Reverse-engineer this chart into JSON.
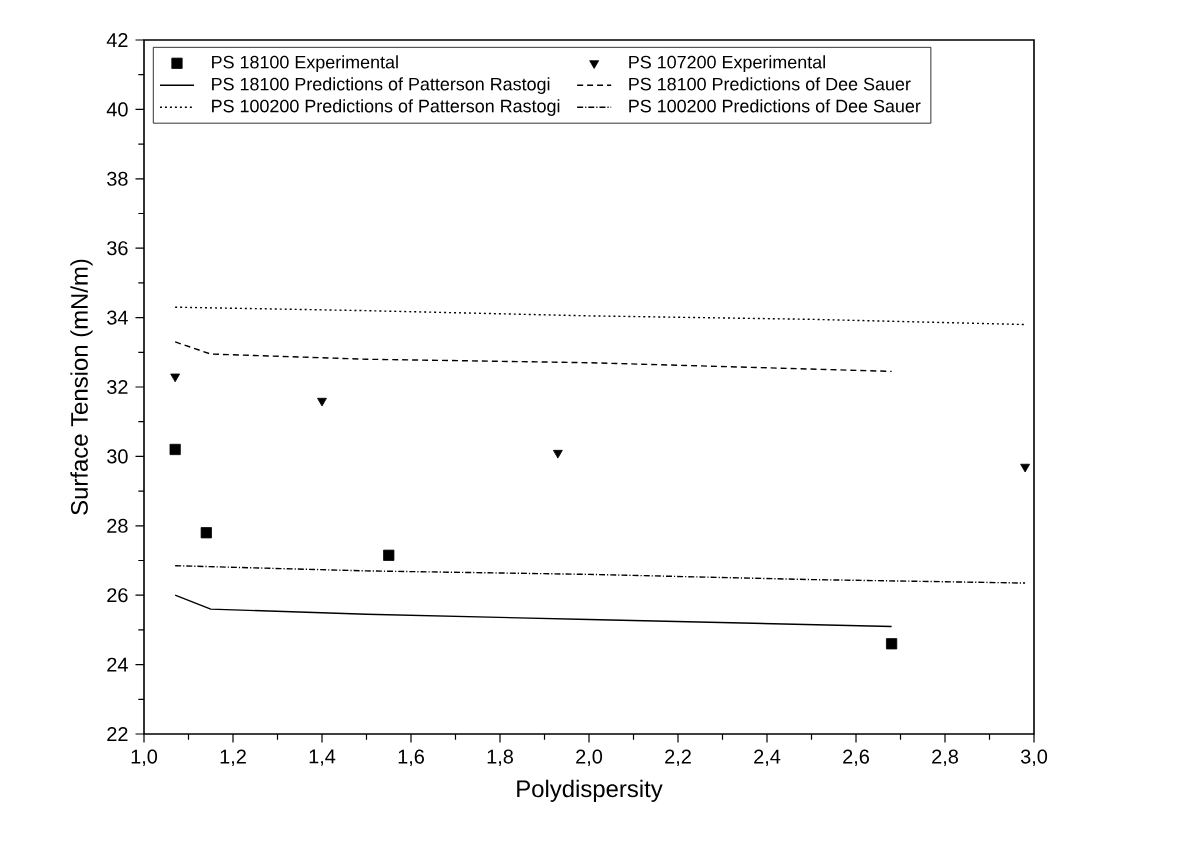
{
  "chart_data": {
    "type": "line",
    "xlabel": "Polydispersity",
    "ylabel": "Surface Tension (mN/m)",
    "xlim": [
      1.0,
      3.0
    ],
    "ylim": [
      22,
      42
    ],
    "xticks": [
      {
        "value": 1.0,
        "label": "1,0"
      },
      {
        "value": 1.2,
        "label": "1,2"
      },
      {
        "value": 1.4,
        "label": "1,4"
      },
      {
        "value": 1.6,
        "label": "1,6"
      },
      {
        "value": 1.8,
        "label": "1,8"
      },
      {
        "value": 2.0,
        "label": "2,0"
      },
      {
        "value": 2.2,
        "label": "2,2"
      },
      {
        "value": 2.4,
        "label": "2,4"
      },
      {
        "value": 2.6,
        "label": "2,6"
      },
      {
        "value": 2.8,
        "label": "2,8"
      },
      {
        "value": 3.0,
        "label": "3,0"
      }
    ],
    "yticks": [
      22,
      24,
      26,
      28,
      30,
      32,
      34,
      36,
      38,
      40,
      42
    ],
    "legend": "top",
    "grid": false,
    "series": [
      {
        "name": "PS 18100   Experimental",
        "type": "scatter",
        "marker": "square",
        "color": "#000000",
        "x": [
          1.07,
          1.14,
          1.55,
          2.68
        ],
        "values": [
          30.2,
          27.8,
          27.15,
          24.6
        ]
      },
      {
        "name": "PS 107200 Experimental",
        "type": "scatter",
        "marker": "triangle",
        "color": "#000000",
        "x": [
          1.07,
          1.4,
          1.93,
          2.98
        ],
        "values": [
          32.3,
          31.6,
          30.1,
          29.7
        ]
      },
      {
        "name": "PS 18100   Predictions of Patterson Rastogi",
        "line_style": "solid",
        "color": "#000000",
        "x": [
          1.07,
          1.15,
          1.5,
          2.0,
          2.68
        ],
        "values": [
          26.0,
          25.6,
          25.45,
          25.3,
          25.1
        ]
      },
      {
        "name": "PS 18100   Predictions of Dee Sauer",
        "line_style": "dashed",
        "color": "#000000",
        "x": [
          1.07,
          1.15,
          1.5,
          2.0,
          2.68
        ],
        "values": [
          33.3,
          32.95,
          32.8,
          32.7,
          32.45
        ]
      },
      {
        "name": "PS 100200 Predictions of Patterson Rastogi",
        "line_style": "dotted",
        "color": "#000000",
        "x": [
          1.07,
          1.5,
          2.0,
          2.5,
          2.98
        ],
        "values": [
          34.3,
          34.2,
          34.05,
          33.95,
          33.8
        ]
      },
      {
        "name": "PS 100200 Predictions of Dee Sauer",
        "line_style": "dashdotted",
        "color": "#000000",
        "x": [
          1.07,
          1.5,
          2.0,
          2.5,
          2.98
        ],
        "values": [
          26.85,
          26.7,
          26.6,
          26.45,
          26.35
        ]
      }
    ]
  }
}
